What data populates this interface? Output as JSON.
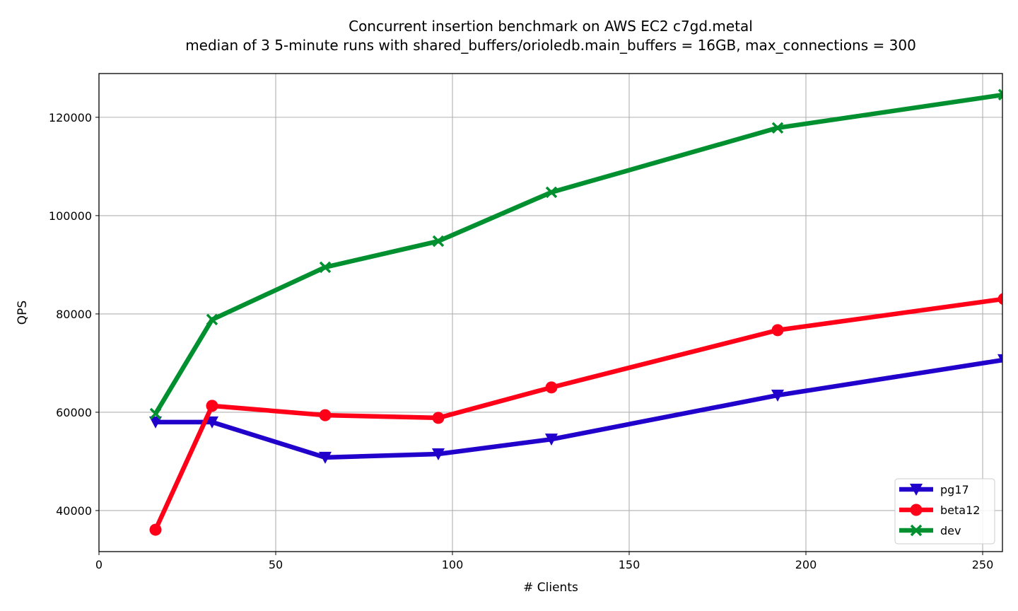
{
  "chart_data": {
    "type": "line",
    "title": "Concurrent insertion benchmark on AWS EC2 c7gd.metal",
    "subtitle": "median of 3 5-minute runs with shared_buffers/orioledb.main_buffers = 16GB, max_connections = 300",
    "xlabel": "# Clients",
    "ylabel": "QPS",
    "xlim": [
      0,
      256
    ],
    "ylim": [
      31650,
      128900
    ],
    "xticks": [
      0,
      50,
      100,
      150,
      200,
      250
    ],
    "yticks": [
      40000,
      60000,
      80000,
      100000,
      120000
    ],
    "grid": true,
    "legend_position": "bottom-right",
    "x": [
      16,
      32,
      64,
      96,
      128,
      192,
      256
    ],
    "series": [
      {
        "name": "pg17",
        "color": "#2200cc",
        "marker": "triangle-down",
        "values": [
          58000,
          58000,
          50800,
          51500,
          54500,
          63450,
          70650
        ]
      },
      {
        "name": "beta12",
        "color": "#ff0018",
        "marker": "circle",
        "values": [
          36100,
          61300,
          59400,
          58850,
          65050,
          76700,
          83050
        ]
      },
      {
        "name": "dev",
        "color": "#009030",
        "marker": "x",
        "values": [
          59700,
          78850,
          89500,
          94800,
          104750,
          117850,
          124600
        ]
      }
    ]
  }
}
